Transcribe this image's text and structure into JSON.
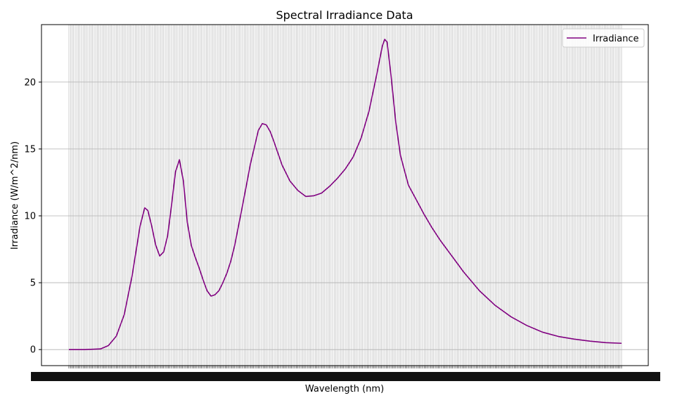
{
  "chart_data": {
    "type": "line",
    "title": "Spectral Irradiance Data",
    "xlabel": "Wavelength (nm)",
    "ylabel": "Irradiance (W/m^2/nm)",
    "xlim": [
      300,
      1000
    ],
    "ylim": [
      -1.2,
      24.3
    ],
    "yticks": [
      0,
      5,
      10,
      15,
      20
    ],
    "ytick_labels": [
      "0",
      "5",
      "10",
      "15",
      "20"
    ],
    "x_step": 2,
    "grid": true,
    "legend_placement": "top-right",
    "series": [
      {
        "name": "Irradiance",
        "color": "#800080",
        "points": [
          [
            300,
            0.0
          ],
          [
            320,
            0.0
          ],
          [
            340,
            0.05
          ],
          [
            350,
            0.3
          ],
          [
            360,
            1.0
          ],
          [
            370,
            2.6
          ],
          [
            380,
            5.5
          ],
          [
            390,
            9.2
          ],
          [
            396,
            10.6
          ],
          [
            400,
            10.4
          ],
          [
            405,
            9.2
          ],
          [
            410,
            7.8
          ],
          [
            415,
            7.0
          ],
          [
            420,
            7.3
          ],
          [
            425,
            8.5
          ],
          [
            430,
            10.8
          ],
          [
            435,
            13.3
          ],
          [
            440,
            14.2
          ],
          [
            445,
            12.6
          ],
          [
            450,
            9.5
          ],
          [
            455,
            7.8
          ],
          [
            460,
            6.9
          ],
          [
            465,
            6.1
          ],
          [
            470,
            5.2
          ],
          [
            475,
            4.4
          ],
          [
            480,
            4.0
          ],
          [
            485,
            4.1
          ],
          [
            490,
            4.4
          ],
          [
            495,
            5.0
          ],
          [
            500,
            5.7
          ],
          [
            505,
            6.6
          ],
          [
            510,
            7.8
          ],
          [
            520,
            10.8
          ],
          [
            530,
            13.9
          ],
          [
            540,
            16.4
          ],
          [
            545,
            16.9
          ],
          [
            550,
            16.8
          ],
          [
            555,
            16.3
          ],
          [
            560,
            15.5
          ],
          [
            570,
            13.8
          ],
          [
            580,
            12.6
          ],
          [
            590,
            11.9
          ],
          [
            600,
            11.45
          ],
          [
            610,
            11.5
          ],
          [
            620,
            11.7
          ],
          [
            630,
            12.2
          ],
          [
            640,
            12.8
          ],
          [
            650,
            13.5
          ],
          [
            660,
            14.4
          ],
          [
            670,
            15.8
          ],
          [
            680,
            17.8
          ],
          [
            690,
            20.6
          ],
          [
            697,
            22.7
          ],
          [
            700,
            23.2
          ],
          [
            703,
            23.0
          ],
          [
            708,
            20.5
          ],
          [
            714,
            17.0
          ],
          [
            720,
            14.5
          ],
          [
            730,
            12.3
          ],
          [
            740,
            11.2
          ],
          [
            750,
            10.1
          ],
          [
            760,
            9.1
          ],
          [
            770,
            8.2
          ],
          [
            780,
            7.4
          ],
          [
            790,
            6.6
          ],
          [
            800,
            5.8
          ],
          [
            820,
            4.4
          ],
          [
            840,
            3.3
          ],
          [
            860,
            2.45
          ],
          [
            880,
            1.8
          ],
          [
            900,
            1.3
          ],
          [
            920,
            0.98
          ],
          [
            940,
            0.78
          ],
          [
            960,
            0.63
          ],
          [
            980,
            0.52
          ],
          [
            1000,
            0.47
          ]
        ]
      }
    ]
  }
}
